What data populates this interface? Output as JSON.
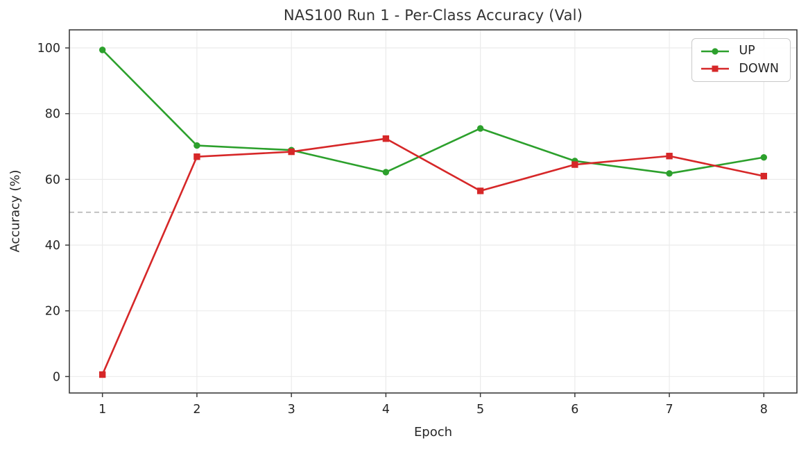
{
  "figure": {
    "title": "NAS100 Run 1 - Per-Class Accuracy (Val)",
    "xlabel": "Epoch",
    "ylabel": "Accuracy (%)"
  },
  "legend": {
    "position": "upper right",
    "items": [
      {
        "label": "UP",
        "color": "#2ca02c",
        "marker": "circle"
      },
      {
        "label": "DOWN",
        "color": "#d62728",
        "marker": "square"
      }
    ]
  },
  "chart_data": {
    "type": "line",
    "title": "NAS100 Run 1 - Per-Class Accuracy (Val)",
    "xlabel": "Epoch",
    "ylabel": "Accuracy (%)",
    "x": [
      1,
      2,
      3,
      4,
      5,
      6,
      7,
      8
    ],
    "series": [
      {
        "name": "UP",
        "color": "#2ca02c",
        "marker": "circle",
        "values": [
          99.4,
          70.3,
          68.9,
          62.2,
          75.5,
          65.6,
          61.8,
          66.7
        ]
      },
      {
        "name": "DOWN",
        "color": "#d62728",
        "marker": "square",
        "values": [
          0.6,
          66.9,
          68.4,
          72.4,
          56.5,
          64.5,
          67.1,
          61.0
        ]
      }
    ],
    "xticks": [
      1,
      2,
      3,
      4,
      5,
      6,
      7,
      8
    ],
    "yticks": [
      0,
      20,
      40,
      60,
      80,
      100
    ],
    "xlim": [
      0.65,
      8.35
    ],
    "ylim": [
      -5,
      105.5
    ],
    "grid": true,
    "legend_position": "upper right",
    "reference_line": {
      "y": 50,
      "style": "dashed",
      "color": "#b3b3b3"
    }
  },
  "style": {
    "grid_color": "#ebebeb",
    "spine_color": "#3b3b3b",
    "tick_text_color": "#262626",
    "background": "#ffffff"
  }
}
